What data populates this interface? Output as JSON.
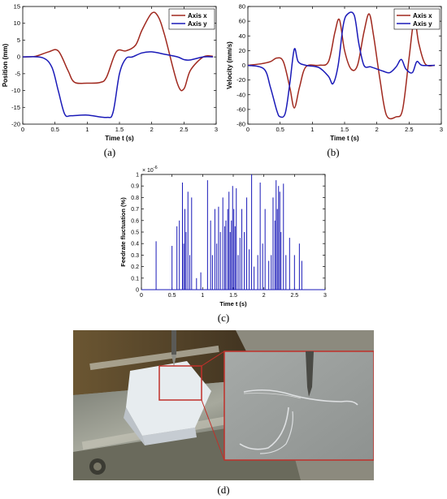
{
  "captions": {
    "a": "(a)",
    "b": "(b)",
    "c": "(c)",
    "d": "(d)"
  },
  "chart_data": [
    {
      "id": "a",
      "type": "line",
      "xlabel": "Time t (s)",
      "ylabel": "Position (mm)",
      "xlim": [
        0,
        3
      ],
      "ylim": [
        -20,
        15
      ],
      "xticks": [
        0,
        0.5,
        1,
        1.5,
        2,
        2.5,
        3
      ],
      "yticks": [
        -20,
        -15,
        -10,
        -5,
        0,
        5,
        10,
        15
      ],
      "legend_position": "top-right",
      "series": [
        {
          "name": "Axis x",
          "color": "#a0291f",
          "x": [
            0,
            0.2,
            0.4,
            0.55,
            0.7,
            0.8,
            1.0,
            1.2,
            1.3,
            1.45,
            1.6,
            1.75,
            1.85,
            2.0,
            2.1,
            2.2,
            2.4,
            2.5,
            2.6,
            2.8,
            2.95
          ],
          "y": [
            0,
            0.2,
            1.5,
            1.8,
            -4.0,
            -7.5,
            -7.8,
            -7.6,
            -6.0,
            1.5,
            1.8,
            3.5,
            8.0,
            13.0,
            12.0,
            6.5,
            -8.0,
            -9.5,
            -4.0,
            0.0,
            0.2
          ]
        },
        {
          "name": "Axis y",
          "color": "#1a1ab8",
          "x": [
            0,
            0.3,
            0.45,
            0.55,
            0.65,
            0.75,
            1.0,
            1.3,
            1.4,
            1.5,
            1.6,
            1.7,
            1.85,
            2.0,
            2.2,
            2.4,
            2.5,
            2.6,
            2.8,
            2.95
          ],
          "y": [
            0,
            -0.2,
            -3.0,
            -10.0,
            -17.0,
            -17.5,
            -17.3,
            -18.0,
            -16.5,
            -5.0,
            -0.5,
            0.0,
            1.2,
            1.5,
            0.8,
            0.0,
            -0.8,
            -0.9,
            0.0,
            0.0
          ]
        }
      ]
    },
    {
      "id": "b",
      "type": "line",
      "xlabel": "Time t (s)",
      "ylabel": "Velocity (mm/s)",
      "xlim": [
        0,
        3
      ],
      "ylim": [
        -80,
        80
      ],
      "xticks": [
        0,
        0.5,
        1,
        1.5,
        2,
        2.5,
        3
      ],
      "yticks": [
        -80,
        -60,
        -40,
        -20,
        0,
        20,
        40,
        60,
        80
      ],
      "legend_position": "top-right",
      "series": [
        {
          "name": "Axis x",
          "color": "#a0291f",
          "x": [
            0,
            0.2,
            0.35,
            0.45,
            0.55,
            0.65,
            0.72,
            0.8,
            0.9,
            1.1,
            1.25,
            1.35,
            1.42,
            1.5,
            1.6,
            1.7,
            1.8,
            1.88,
            1.95,
            2.05,
            2.15,
            2.3,
            2.4,
            2.5,
            2.58,
            2.65,
            2.75,
            2.9
          ],
          "y": [
            0,
            2,
            5,
            10,
            5,
            -30,
            -58,
            -30,
            -2,
            0,
            5,
            45,
            62,
            20,
            -5,
            0,
            45,
            70,
            40,
            -20,
            -68,
            -70,
            -60,
            10,
            62,
            30,
            2,
            0
          ]
        },
        {
          "name": "Axis y",
          "color": "#1a1ab8",
          "x": [
            0,
            0.25,
            0.35,
            0.45,
            0.5,
            0.58,
            0.65,
            0.72,
            0.78,
            0.9,
            1.1,
            1.25,
            1.32,
            1.4,
            1.48,
            1.55,
            1.65,
            1.72,
            1.8,
            1.9,
            2.0,
            2.1,
            2.2,
            2.3,
            2.38,
            2.45,
            2.55,
            2.62,
            2.7,
            2.9
          ],
          "y": [
            0,
            -5,
            -30,
            -62,
            -70,
            -65,
            -25,
            22,
            5,
            0,
            -3,
            -15,
            -25,
            0,
            55,
            70,
            68,
            30,
            0,
            -2,
            -5,
            -8,
            -10,
            -2,
            8,
            -5,
            -10,
            5,
            0,
            0
          ]
        }
      ]
    },
    {
      "id": "c",
      "type": "bar",
      "xlabel": "Time t (s)",
      "ylabel": "Feedrate fluctuation (%)",
      "y_multiplier_label": "× 10",
      "y_multiplier_exp": "-6",
      "xlim": [
        0,
        3
      ],
      "ylim": [
        0,
        1
      ],
      "xticks": [
        0,
        0.5,
        1,
        1.5,
        2,
        2.5,
        3
      ],
      "yticks": [
        0,
        0.1,
        0.2,
        0.3,
        0.4,
        0.5,
        0.6,
        0.7,
        0.8,
        0.9,
        1
      ],
      "ytick_labels": [
        "0",
        "0.1",
        "0.2",
        "0.3",
        "0.4",
        "0.5",
        "0.6",
        "0.7",
        "0.8",
        "0.9",
        "1"
      ],
      "color": "#1a1ab8",
      "spikes": {
        "x": [
          0.24,
          0.5,
          0.58,
          0.62,
          0.67,
          0.69,
          0.71,
          0.73,
          0.76,
          0.79,
          0.82,
          0.9,
          0.97,
          1.08,
          1.13,
          1.16,
          1.2,
          1.23,
          1.26,
          1.29,
          1.33,
          1.36,
          1.38,
          1.41,
          1.43,
          1.45,
          1.47,
          1.49,
          1.51,
          1.53,
          1.55,
          1.58,
          1.61,
          1.64,
          1.68,
          1.72,
          1.76,
          1.8,
          1.84,
          1.9,
          1.94,
          1.98,
          2.02,
          2.08,
          2.12,
          2.15,
          2.18,
          2.2,
          2.22,
          2.24,
          2.26,
          2.28,
          2.32,
          2.36,
          2.42,
          2.5,
          2.58,
          2.62
        ],
        "y": [
          0.42,
          0.38,
          0.55,
          0.6,
          0.93,
          0.4,
          0.7,
          0.5,
          0.85,
          0.3,
          0.8,
          0.1,
          0.15,
          0.95,
          0.6,
          0.3,
          0.7,
          0.4,
          0.72,
          0.5,
          0.8,
          0.55,
          0.6,
          0.7,
          0.85,
          0.5,
          0.6,
          0.9,
          0.7,
          0.55,
          0.88,
          0.3,
          0.45,
          0.7,
          0.5,
          0.8,
          0.35,
          1.0,
          0.2,
          0.3,
          0.93,
          0.4,
          0.7,
          0.25,
          0.3,
          0.8,
          0.6,
          0.95,
          0.7,
          0.9,
          0.85,
          0.5,
          0.92,
          0.3,
          0.45,
          0.3,
          0.4,
          0.25
        ]
      }
    }
  ]
}
